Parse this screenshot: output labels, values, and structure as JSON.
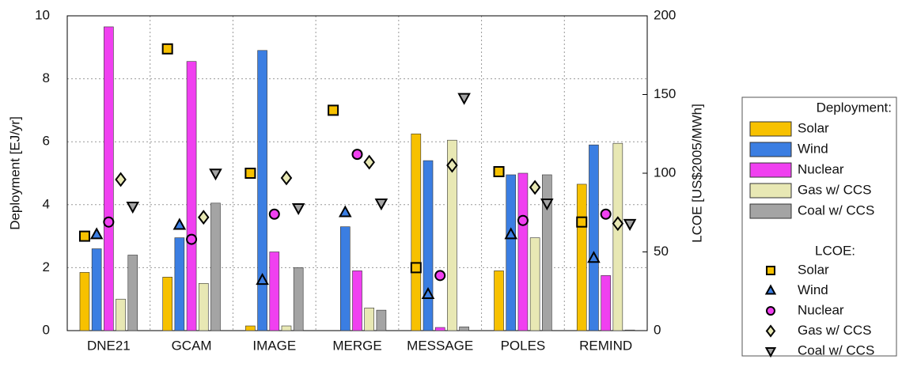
{
  "chart_data": {
    "type": "bar",
    "categories": [
      "DNE21",
      "GCAM",
      "IMAGE",
      "MERGE",
      "MESSAGE",
      "POLES",
      "REMIND"
    ],
    "ylabel": "Deployment [EJ/yr]",
    "y2label": "LCOE [US$2005/MWh]",
    "ylim": [
      0,
      10
    ],
    "yticks": [
      0,
      2,
      4,
      6,
      8,
      10
    ],
    "y2lim": [
      0,
      200
    ],
    "y2ticks": [
      0,
      50,
      100,
      150,
      200
    ],
    "grid": true,
    "legend": "right",
    "legend_groups": [
      "Deployment:",
      "LCOE:"
    ],
    "series": [
      {
        "name": "Solar",
        "color": "#f7c100",
        "values": [
          1.85,
          1.7,
          0.15,
          null,
          6.25,
          1.9,
          4.65
        ]
      },
      {
        "name": "Wind",
        "color": "#3b7ee2",
        "values": [
          2.6,
          2.95,
          8.9,
          3.3,
          5.4,
          4.95,
          5.9
        ]
      },
      {
        "name": "Nuclear",
        "color": "#f040f0",
        "values": [
          9.65,
          8.55,
          2.5,
          1.9,
          0.1,
          5.0,
          1.75
        ]
      },
      {
        "name": "Gas w/ CCS",
        "color": "#e8e8b4",
        "values": [
          1.0,
          1.5,
          0.15,
          0.72,
          6.05,
          2.95,
          5.95
        ]
      },
      {
        "name": "Coal w/ CCS",
        "color": "#a4a4a4",
        "values": [
          2.4,
          4.05,
          2.0,
          0.65,
          0.12,
          4.95,
          0.02
        ]
      },
      {
        "name": "Solar",
        "color": "#f7c100",
        "axis": "y2",
        "marker": "square",
        "values": [
          60,
          179,
          100,
          140,
          40,
          101,
          69
        ]
      },
      {
        "name": "Wind",
        "color": "#3b7ee2",
        "axis": "y2",
        "marker": "triangle",
        "values": [
          61,
          67,
          32,
          75,
          23,
          61,
          46
        ]
      },
      {
        "name": "Nuclear",
        "color": "#f040f0",
        "axis": "y2",
        "marker": "circle",
        "values": [
          69,
          58,
          74,
          112,
          35,
          70,
          74
        ]
      },
      {
        "name": "Gas w/ CCS",
        "color": "#e8e8b4",
        "axis": "y2",
        "marker": "diamond",
        "values": [
          96,
          72,
          97,
          107,
          105,
          91,
          68
        ]
      },
      {
        "name": "Coal w/ CCS",
        "color": "#a4a4a4",
        "axis": "y2",
        "marker": "triangle-down",
        "values": [
          79,
          100,
          78,
          81,
          148,
          81,
          68
        ]
      }
    ]
  }
}
